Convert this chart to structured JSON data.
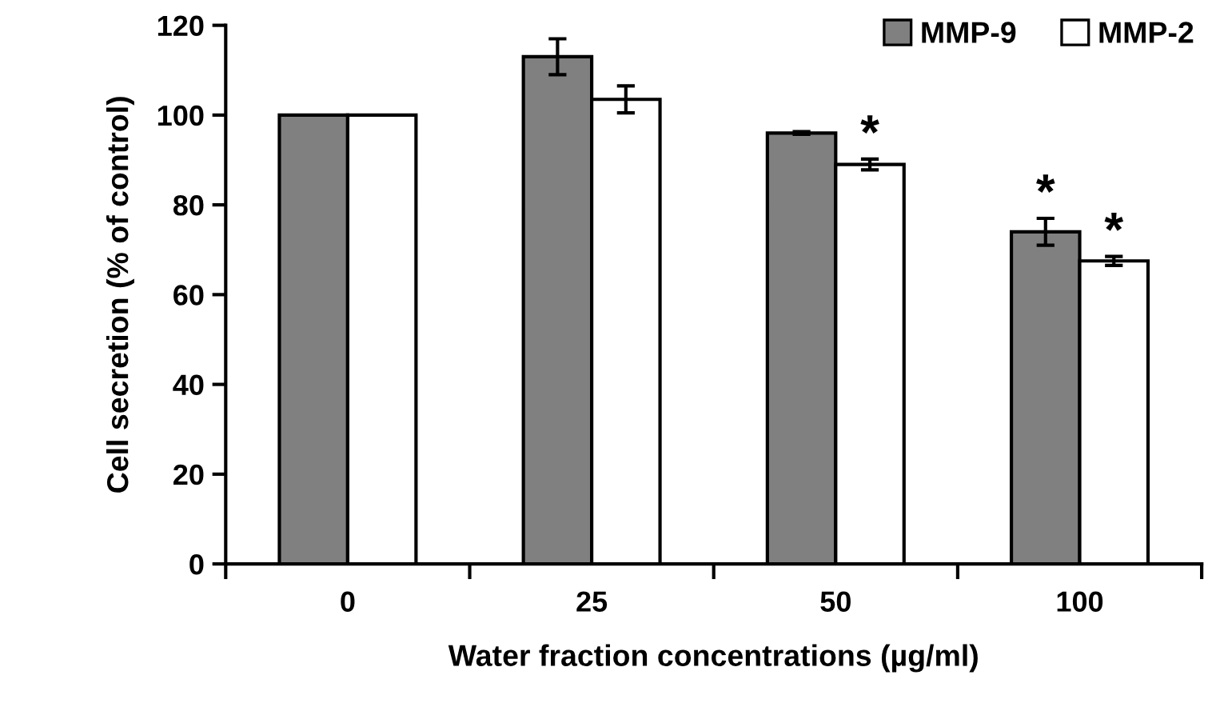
{
  "chart_data": {
    "type": "bar",
    "xlabel": "Water fraction concentrations (µg/ml)",
    "ylabel": "Cell secretion (% of control)",
    "categories": [
      "0",
      "25",
      "50",
      "100"
    ],
    "series": [
      {
        "name": "MMP-9",
        "color": "#808080",
        "values": [
          100,
          113,
          96,
          74
        ],
        "errors": [
          null,
          4,
          0.3,
          3
        ]
      },
      {
        "name": "MMP-2",
        "color": "#ffffff",
        "values": [
          100,
          103.5,
          89,
          67.5
        ],
        "errors": [
          null,
          3,
          1.2,
          1
        ]
      }
    ],
    "ylim": [
      0,
      120
    ],
    "yticks": [
      0,
      20,
      40,
      60,
      80,
      100,
      120
    ],
    "grid": false,
    "legend": "top right",
    "annotations": [
      {
        "text": "*",
        "x": "50",
        "y": 89
      },
      {
        "text": "*",
        "x": "100",
        "y": 74
      },
      {
        "text": "*",
        "x": "100",
        "y": 67.5
      }
    ]
  }
}
